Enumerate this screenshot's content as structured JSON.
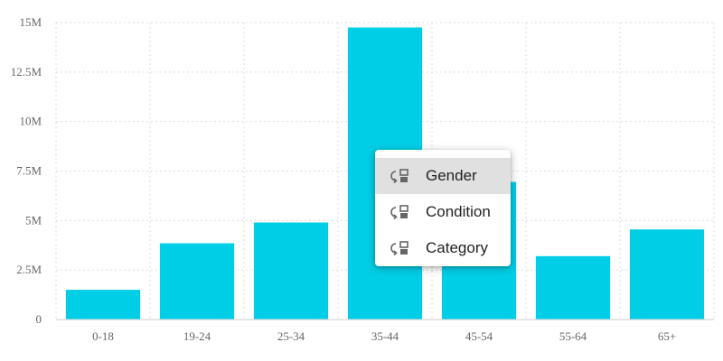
{
  "chart_data": {
    "type": "bar",
    "title": "",
    "xlabel": "",
    "ylabel": "",
    "categories": [
      "0-18",
      "19-24",
      "25-34",
      "35-44",
      "45-54",
      "55-64",
      "65+"
    ],
    "values": [
      1500000,
      3850000,
      4900000,
      14750000,
      6950000,
      3200000,
      4550000
    ],
    "ylim": [
      0,
      15000000
    ],
    "y_ticks": [
      0,
      2500000,
      5000000,
      7500000,
      10000000,
      12500000,
      15000000
    ],
    "y_tick_labels": [
      "0",
      "2.5M",
      "5M",
      "7.5M",
      "10M",
      "12.5M",
      "15M"
    ],
    "grid": true,
    "bar_color": "#00cee6"
  },
  "menu": {
    "items": [
      {
        "label": "Gender",
        "icon": "group-by-icon",
        "active": true
      },
      {
        "label": "Condition",
        "icon": "group-by-icon",
        "active": false
      },
      {
        "label": "Category",
        "icon": "group-by-icon",
        "active": false
      }
    ]
  }
}
